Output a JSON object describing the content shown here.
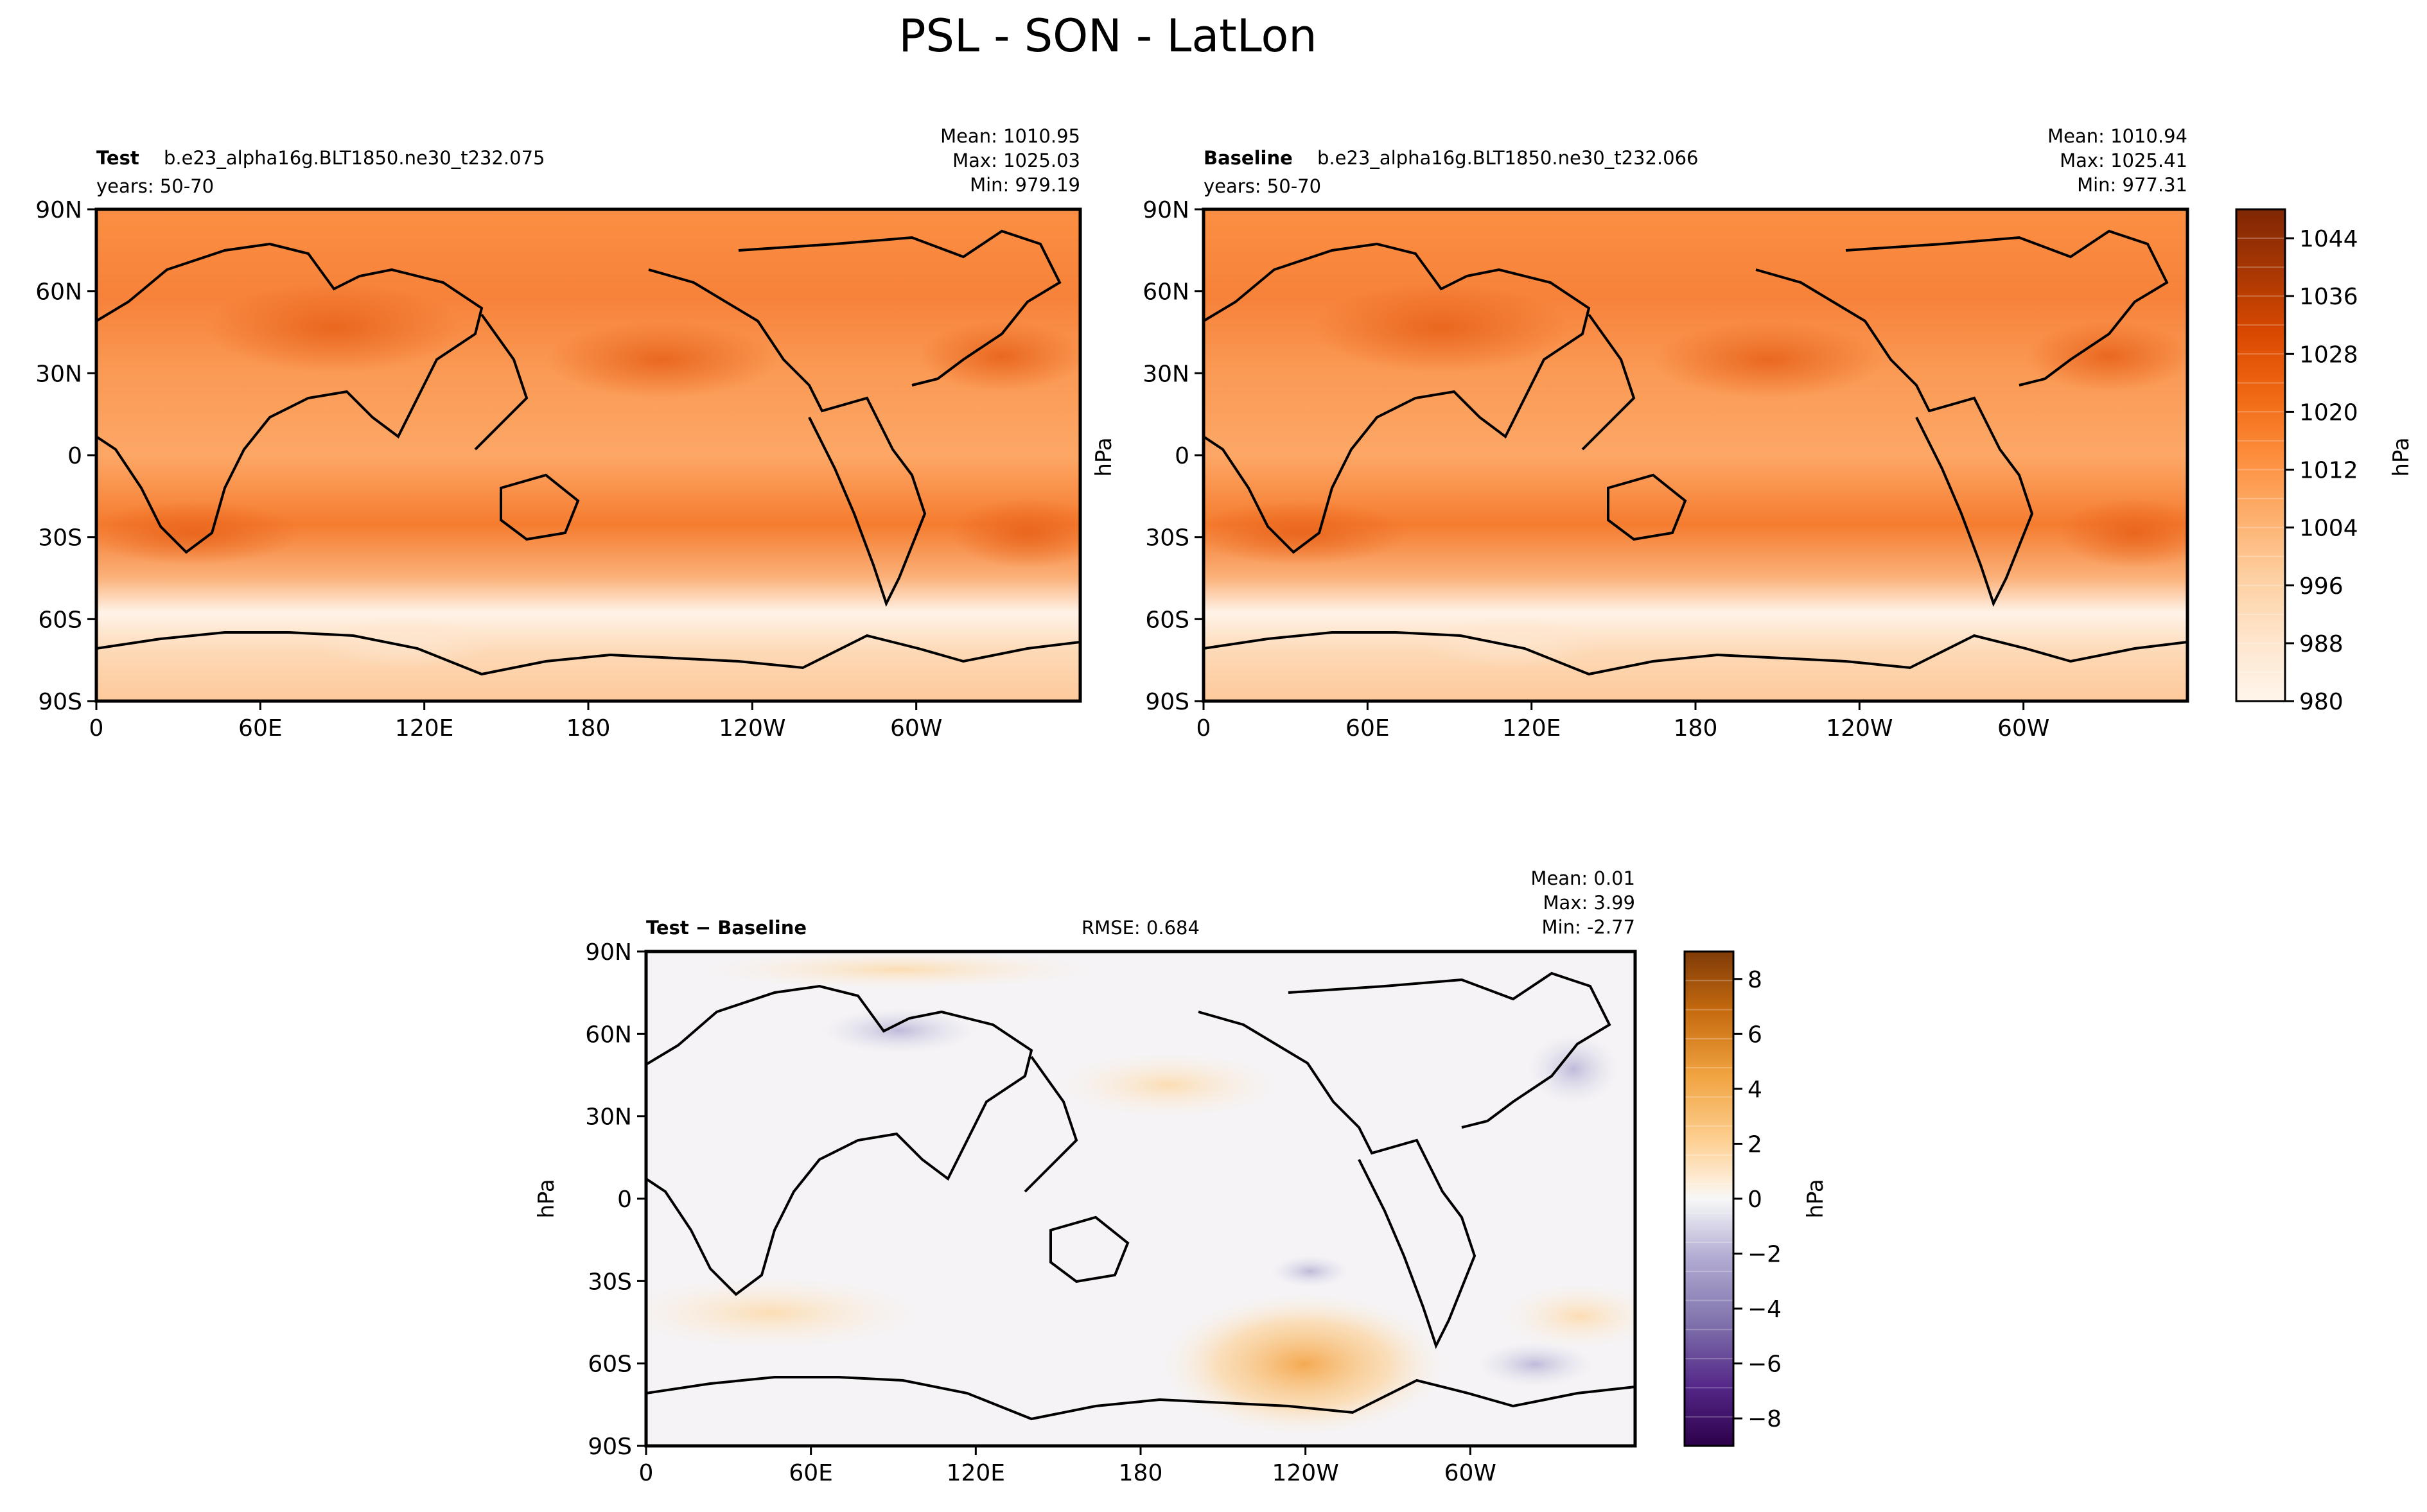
{
  "figure": {
    "title": "PSL - SON - LatLon"
  },
  "chart_data": [
    {
      "type": "heatmap",
      "panel": "test",
      "case_label": "Test",
      "case_name": "b.e23_alpha16g.BLT1850.ne30_t232.075",
      "years": "years: 50-70",
      "stats": {
        "mean": "Mean: 1010.95",
        "max": "Max: 1025.03",
        "min": "Min: 979.19"
      },
      "x_ticks": [
        "0",
        "60E",
        "120E",
        "180",
        "120W",
        "60W"
      ],
      "y_ticks": [
        "90N",
        "60N",
        "30N",
        "0",
        "30S",
        "60S",
        "90S"
      ],
      "xlim": [
        0,
        360
      ],
      "ylim": [
        -90,
        90
      ]
    },
    {
      "type": "heatmap",
      "panel": "baseline",
      "case_label": "Baseline",
      "case_name": "b.e23_alpha16g.BLT1850.ne30_t232.066",
      "years": "years: 50-70",
      "stats": {
        "mean": "Mean: 1010.94",
        "max": "Max: 1025.41",
        "min": "Min: 977.31"
      },
      "x_ticks": [
        "0",
        "60E",
        "120E",
        "180",
        "120W",
        "60W"
      ],
      "y_ticks": [
        "90N",
        "60N",
        "30N",
        "0",
        "30S",
        "60S",
        "90S"
      ],
      "ylabel": "hPa",
      "xlim": [
        0,
        360
      ],
      "ylim": [
        -90,
        90
      ]
    },
    {
      "type": "heatmap",
      "panel": "difference",
      "case_label": "Test − Baseline",
      "rmse": "RMSE: 0.684",
      "stats": {
        "mean": "Mean:  0.01",
        "max": "Max:  3.99",
        "min": "Min: -2.77"
      },
      "x_ticks": [
        "0",
        "60E",
        "120E",
        "180",
        "120W",
        "60W"
      ],
      "y_ticks": [
        "90N",
        "60N",
        "30N",
        "0",
        "30S",
        "60S",
        "90S"
      ],
      "ylabel": "hPa",
      "xlim": [
        0,
        360
      ],
      "ylim": [
        -90,
        90
      ]
    }
  ],
  "colorbars": {
    "main": {
      "label": "hPa",
      "range": [
        980,
        1048
      ],
      "ticks": [
        "1044",
        "1036",
        "1028",
        "1020",
        "1012",
        "1004",
        "996",
        "988",
        "980"
      ],
      "tick_values": [
        1044,
        1036,
        1028,
        1020,
        1012,
        1004,
        996,
        988,
        980
      ],
      "colors": [
        "#fff5eb",
        "#fee6ce",
        "#fdd0a2",
        "#fdae6b",
        "#fd8d3c",
        "#f16913",
        "#d94801",
        "#a63603",
        "#7f2704"
      ]
    },
    "diff": {
      "label": "hPa",
      "range": [
        -9,
        9
      ],
      "ticks": [
        "8",
        "6",
        "4",
        "2",
        "0",
        "−2",
        "−4",
        "−6",
        "−8"
      ],
      "tick_values": [
        8,
        6,
        4,
        2,
        0,
        -2,
        -4,
        -6,
        -8
      ],
      "colors": [
        "#3f007d",
        "#6a51a3",
        "#9e9ac8",
        "#dadaeb",
        "#f7f7f7",
        "#fee0b6",
        "#fdb863",
        "#e08214",
        "#b35806",
        "#7f3b08"
      ]
    }
  }
}
